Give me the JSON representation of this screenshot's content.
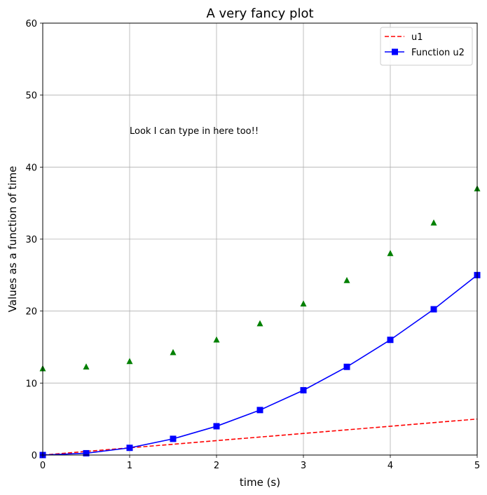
{
  "chart_data": {
    "type": "line",
    "title": "A very fancy plot",
    "xlabel": "time (s)",
    "ylabel": "Values as a function of time",
    "xlim": [
      0,
      5
    ],
    "ylim": [
      0,
      60
    ],
    "xticks": [
      0,
      1,
      2,
      3,
      4,
      5
    ],
    "yticks": [
      0,
      10,
      20,
      30,
      40,
      50,
      60
    ],
    "grid": true,
    "legend_position": "top-right",
    "annotation": {
      "text": "Look I can type in here too!!",
      "x": 1,
      "y": 45
    },
    "series": [
      {
        "name": "u1",
        "style": "dashed-line",
        "color": "#ff0000",
        "x": [
          0,
          0.5,
          1,
          1.5,
          2,
          2.5,
          3,
          3.5,
          4,
          4.5,
          5
        ],
        "y": [
          0,
          0.5,
          1,
          1.5,
          2,
          2.5,
          3,
          3.5,
          4,
          4.5,
          5
        ]
      },
      {
        "name": "Function u2",
        "style": "line-square-markers",
        "color": "#0000ff",
        "x": [
          0,
          0.5,
          1,
          1.5,
          2,
          2.5,
          3,
          3.5,
          4,
          4.5,
          5
        ],
        "y": [
          0,
          0.25,
          1,
          2.25,
          4,
          6.25,
          9,
          12.25,
          16,
          20.25,
          25
        ]
      },
      {
        "style": "triangle-markers",
        "color": "#008000",
        "x": [
          0,
          0.5,
          1,
          1.5,
          2,
          2.5,
          3,
          3.5,
          4,
          4.5,
          5
        ],
        "y": [
          12,
          12.25,
          13,
          14.25,
          16,
          18.25,
          21,
          24.25,
          28,
          32.25,
          37
        ]
      }
    ]
  }
}
